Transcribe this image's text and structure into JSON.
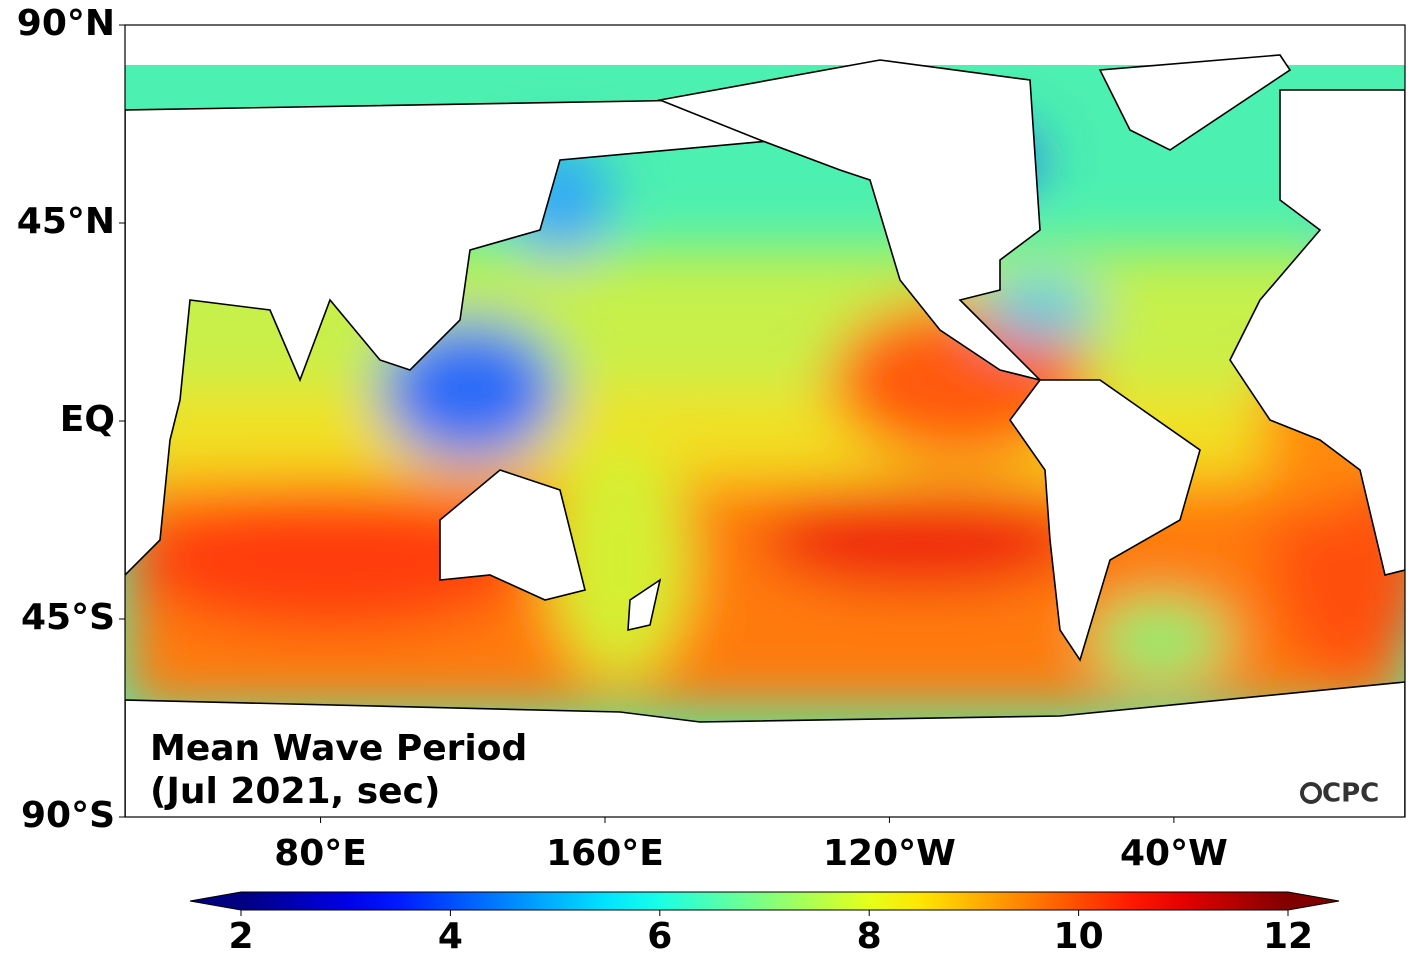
{
  "map": {
    "title_lines": [
      "Mean Wave Period",
      "(Jul 2021, sec)"
    ],
    "credit": "CPC",
    "lonlim": [
      25,
      385
    ],
    "latlim": [
      -90,
      90
    ],
    "lat_ticks": [
      {
        "value": 90,
        "label": "90°N"
      },
      {
        "value": 45,
        "label": "45°N"
      },
      {
        "value": 0,
        "label": "EQ"
      },
      {
        "value": -45,
        "label": "45°S"
      },
      {
        "value": -90,
        "label": "90°S"
      }
    ],
    "lon_ticks": [
      {
        "value": 80,
        "label": "80°E"
      },
      {
        "value": 160,
        "label": "160°E"
      },
      {
        "value": 240,
        "label": "120°W"
      },
      {
        "value": 320,
        "label": "40°W"
      }
    ],
    "colorbar": {
      "colormap": "jet",
      "lim": [
        2,
        12
      ],
      "ticks": [
        2,
        4,
        6,
        8,
        10,
        12
      ],
      "extend": "both"
    }
  }
}
